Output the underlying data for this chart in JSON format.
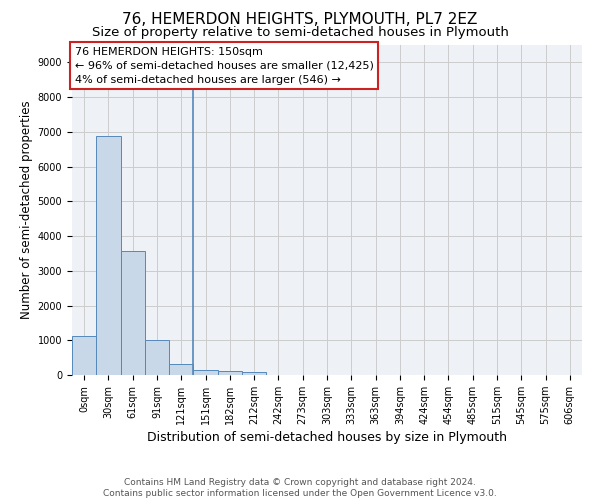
{
  "title": "76, HEMERDON HEIGHTS, PLYMOUTH, PL7 2EZ",
  "subtitle": "Size of property relative to semi-detached houses in Plymouth",
  "xlabel": "Distribution of semi-detached houses by size in Plymouth",
  "ylabel": "Number of semi-detached properties",
  "bar_values": [
    1130,
    6870,
    3560,
    1010,
    320,
    150,
    110,
    90,
    0,
    0,
    0,
    0,
    0,
    0,
    0,
    0,
    0,
    0,
    0,
    0
  ],
  "bar_labels": [
    "0sqm",
    "30sqm",
    "61sqm",
    "91sqm",
    "121sqm",
    "151sqm",
    "182sqm",
    "212sqm",
    "242sqm",
    "273sqm",
    "303sqm",
    "333sqm",
    "363sqm",
    "394sqm",
    "424sqm",
    "454sqm",
    "485sqm",
    "515sqm",
    "545sqm",
    "575sqm",
    "606sqm"
  ],
  "bar_color": "#c8d8e8",
  "bar_edge_color": "#5588bb",
  "annotation_box_color": "#cc2222",
  "annotation_text": "76 HEMERDON HEIGHTS: 150sqm\n← 96% of semi-detached houses are smaller (12,425)\n4% of semi-detached houses are larger (546) →",
  "property_line_x": 4.5,
  "ylim": [
    0,
    9500
  ],
  "yticks": [
    0,
    1000,
    2000,
    3000,
    4000,
    5000,
    6000,
    7000,
    8000,
    9000
  ],
  "grid_color": "#cccccc",
  "bg_color": "#eef2f7",
  "footer": "Contains HM Land Registry data © Crown copyright and database right 2024.\nContains public sector information licensed under the Open Government Licence v3.0.",
  "title_fontsize": 11,
  "subtitle_fontsize": 9.5,
  "xlabel_fontsize": 9,
  "ylabel_fontsize": 8.5,
  "annotation_fontsize": 8,
  "footer_fontsize": 6.5,
  "tick_fontsize": 7
}
